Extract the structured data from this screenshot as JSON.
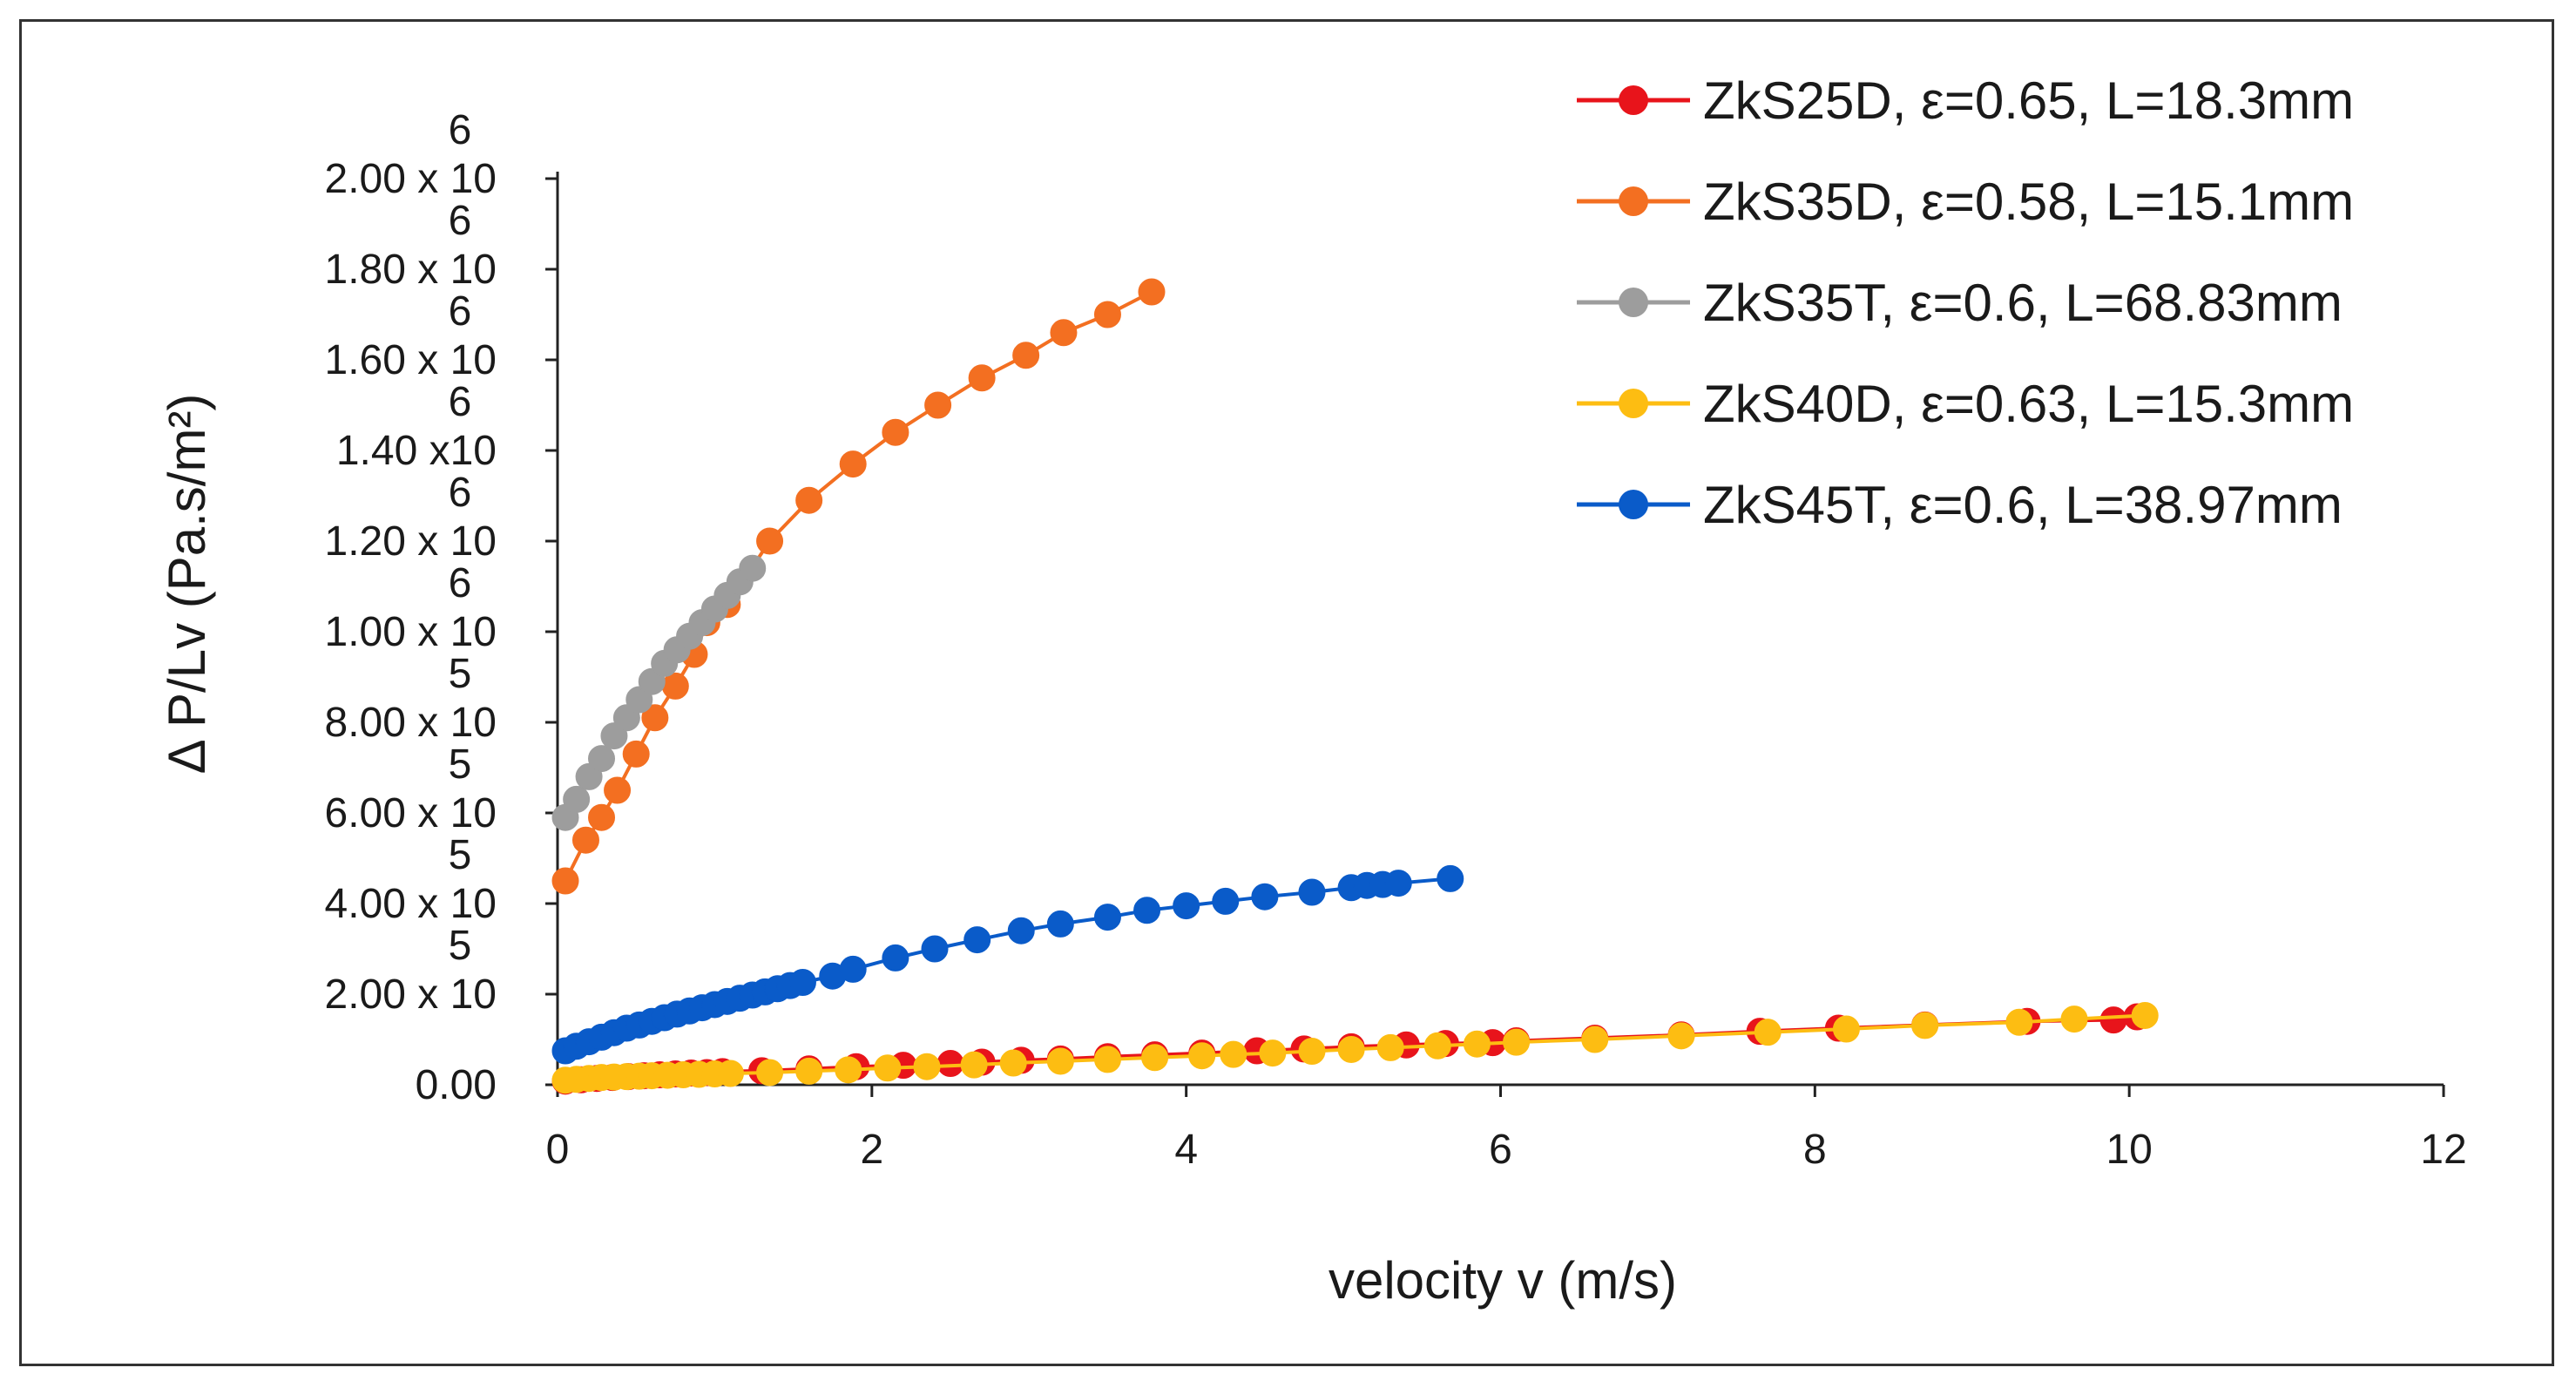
{
  "chart_data": {
    "type": "line",
    "title": "",
    "xlabel": "velocity v (m/s)",
    "ylabel": "Δ P/Lv (Pa.s/m²)",
    "xlim": [
      0,
      12
    ],
    "ylim": [
      0,
      2000000
    ],
    "grid": false,
    "legend_position": "top-right",
    "x_ticks": [
      {
        "value": 0,
        "label": "0"
      },
      {
        "value": 2,
        "label": "2"
      },
      {
        "value": 4,
        "label": "4"
      },
      {
        "value": 6,
        "label": "6"
      },
      {
        "value": 8,
        "label": "8"
      },
      {
        "value": 10,
        "label": "10"
      },
      {
        "value": 12,
        "label": "12"
      }
    ],
    "y_ticks": [
      {
        "value": 0,
        "label": "0.00",
        "exp": ""
      },
      {
        "value": 200000,
        "label": "2.00 x 10",
        "exp": "5"
      },
      {
        "value": 400000,
        "label": "4.00 x 10",
        "exp": "5"
      },
      {
        "value": 600000,
        "label": "6.00 x 10",
        "exp": "5"
      },
      {
        "value": 800000,
        "label": "8.00 x 10",
        "exp": "5"
      },
      {
        "value": 1000000,
        "label": "1.00 x 10",
        "exp": "6"
      },
      {
        "value": 1200000,
        "label": "1.20 x 10",
        "exp": "6"
      },
      {
        "value": 1400000,
        "label": "1.40 x10",
        "exp": "6"
      },
      {
        "value": 1600000,
        "label": "1.60 x 10",
        "exp": "6"
      },
      {
        "value": 1800000,
        "label": "1.80 x 10",
        "exp": "6"
      },
      {
        "value": 2000000,
        "label": "2.00 x 10",
        "exp": "6"
      }
    ],
    "series": [
      {
        "name": "ZkS25D, ε=0.65, L=18.3mm",
        "color": "#e8141b",
        "x": [
          0.05,
          0.15,
          0.25,
          0.35,
          0.45,
          0.55,
          0.65,
          0.75,
          0.85,
          0.95,
          1.05,
          1.3,
          1.6,
          1.9,
          2.2,
          2.5,
          2.7,
          2.95,
          3.2,
          3.5,
          3.8,
          4.1,
          4.45,
          4.75,
          5.05,
          5.4,
          5.65,
          5.95,
          6.1,
          6.6,
          7.15,
          7.65,
          8.15,
          8.7,
          9.35,
          9.9,
          10.05
        ],
        "y": [
          8000,
          11000,
          14000,
          16000,
          18000,
          20000,
          22000,
          24000,
          26000,
          27000,
          29000,
          31000,
          35000,
          40000,
          43000,
          47000,
          50000,
          54000,
          57000,
          62000,
          66000,
          70000,
          75000,
          79000,
          84000,
          88000,
          91000,
          93000,
          97000,
          103000,
          110000,
          118000,
          125000,
          132000,
          140000,
          143000,
          150000
        ]
      },
      {
        "name": "ZkS35D, ε=0.58, L=15.1mm",
        "color": "#f36f21",
        "x": [
          0.05,
          0.18,
          0.28,
          0.38,
          0.5,
          0.62,
          0.75,
          0.87,
          0.95,
          1.08,
          1.35,
          1.6,
          1.88,
          2.15,
          2.42,
          2.7,
          2.98,
          3.22,
          3.5,
          3.78
        ],
        "y": [
          450000,
          540000,
          590000,
          650000,
          730000,
          810000,
          880000,
          950000,
          1020000,
          1060000,
          1200000,
          1290000,
          1370000,
          1440000,
          1500000,
          1560000,
          1610000,
          1660000,
          1700000,
          1750000
        ]
      },
      {
        "name": "ZkS35T, ε=0.6, L=68.83mm",
        "color": "#9d9d9d",
        "x": [
          0.05,
          0.12,
          0.2,
          0.28,
          0.36,
          0.44,
          0.52,
          0.6,
          0.68,
          0.76,
          0.84,
          0.92,
          1.0,
          1.08,
          1.16,
          1.24
        ],
        "y": [
          590000,
          630000,
          680000,
          720000,
          770000,
          810000,
          850000,
          890000,
          930000,
          960000,
          990000,
          1020000,
          1050000,
          1080000,
          1110000,
          1140000
        ]
      },
      {
        "name": "ZkS40D, ε=0.63, L=15.3mm",
        "color": "#fdbd12",
        "x": [
          0.05,
          0.12,
          0.2,
          0.28,
          0.36,
          0.44,
          0.52,
          0.6,
          0.7,
          0.8,
          0.9,
          1.0,
          1.1,
          1.35,
          1.6,
          1.85,
          2.1,
          2.35,
          2.65,
          2.9,
          3.2,
          3.5,
          3.8,
          4.1,
          4.3,
          4.55,
          4.8,
          5.05,
          5.3,
          5.6,
          5.85,
          6.1,
          6.6,
          7.15,
          7.7,
          8.2,
          8.7,
          9.3,
          9.65,
          10.1
        ],
        "y": [
          10000,
          12000,
          14000,
          16000,
          17000,
          18000,
          19000,
          20000,
          21000,
          22000,
          23000,
          24000,
          25000,
          27000,
          30000,
          33000,
          37000,
          40000,
          44000,
          48000,
          52000,
          56000,
          60000,
          64000,
          67000,
          70000,
          74000,
          78000,
          82000,
          86000,
          90000,
          94000,
          100000,
          108000,
          116000,
          123000,
          131000,
          138000,
          145000,
          153000
        ]
      },
      {
        "name": "ZkS45T, ε=0.6, L=38.97mm",
        "color": "#0a5bc9",
        "x": [
          0.05,
          0.12,
          0.2,
          0.28,
          0.36,
          0.44,
          0.52,
          0.6,
          0.68,
          0.76,
          0.84,
          0.92,
          1.0,
          1.08,
          1.16,
          1.24,
          1.32,
          1.4,
          1.48,
          1.56,
          1.75,
          1.88,
          2.15,
          2.4,
          2.67,
          2.95,
          3.2,
          3.5,
          3.75,
          4.0,
          4.25,
          4.5,
          4.8,
          5.05,
          5.15,
          5.25,
          5.35,
          5.68
        ],
        "y": [
          75000,
          85000,
          95000,
          105000,
          115000,
          125000,
          132000,
          140000,
          148000,
          156000,
          163000,
          170000,
          177000,
          184000,
          191000,
          198000,
          205000,
          212000,
          219000,
          226000,
          240000,
          255000,
          280000,
          300000,
          320000,
          340000,
          355000,
          370000,
          385000,
          395000,
          405000,
          415000,
          425000,
          435000,
          440000,
          442000,
          445000,
          455000
        ]
      }
    ]
  }
}
